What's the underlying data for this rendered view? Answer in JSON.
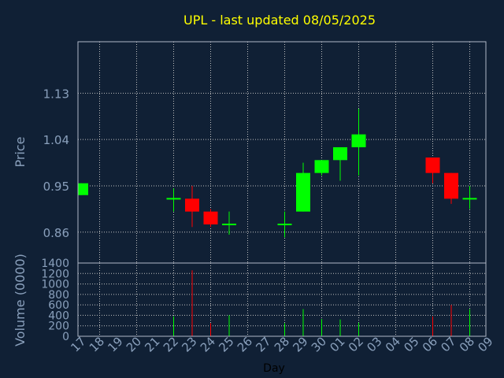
{
  "chart_data": [
    {
      "type": "candlestick",
      "title": "UPL - last updated 08/05/2025",
      "xlabel": "",
      "ylabel": "Price",
      "ylim": [
        0.8,
        1.23
      ],
      "yticks": [
        "0.86",
        "0.95",
        "1.04",
        "1.13"
      ],
      "grid": true,
      "days": [
        "17",
        "18",
        "19",
        "20",
        "21",
        "22",
        "23",
        "24",
        "25",
        "26",
        "27",
        "28",
        "29",
        "30",
        "01",
        "02",
        "03",
        "04",
        "05",
        "06",
        "07",
        "08",
        "09"
      ],
      "candles": [
        {
          "day": "17",
          "open": 0.932,
          "close": 0.955,
          "high": 0.955,
          "low": 0.932
        },
        {
          "day": "22",
          "open": 0.925,
          "close": 0.925,
          "high": 0.945,
          "low": 0.9
        },
        {
          "day": "23",
          "open": 0.925,
          "close": 0.9,
          "high": 0.95,
          "low": 0.87
        },
        {
          "day": "24",
          "open": 0.9,
          "close": 0.875,
          "high": 0.905,
          "low": 0.87
        },
        {
          "day": "25",
          "open": 0.875,
          "close": 0.875,
          "high": 0.9,
          "low": 0.855
        },
        {
          "day": "28",
          "open": 0.875,
          "close": 0.875,
          "high": 0.9,
          "low": 0.85
        },
        {
          "day": "29",
          "open": 0.9,
          "close": 0.975,
          "high": 0.995,
          "low": 0.9
        },
        {
          "day": "30",
          "open": 0.975,
          "close": 1.0,
          "high": 1.0,
          "low": 0.97
        },
        {
          "day": "01",
          "open": 1.0,
          "close": 1.025,
          "high": 1.025,
          "low": 0.96
        },
        {
          "day": "02",
          "open": 1.025,
          "close": 1.05,
          "high": 1.1,
          "low": 0.97
        },
        {
          "day": "06",
          "open": 1.005,
          "close": 0.975,
          "high": 1.005,
          "low": 0.955
        },
        {
          "day": "07",
          "open": 0.975,
          "close": 0.925,
          "high": 0.975,
          "low": 0.915
        },
        {
          "day": "08",
          "open": 0.925,
          "close": 0.925,
          "high": 0.95,
          "low": 0.905
        }
      ],
      "colors": {
        "up": "#00ff00",
        "down": "#ff0000",
        "background": "#102035",
        "axis": "#8aa0bc",
        "title": "#ffff00",
        "grid": "#c0c0c0"
      }
    },
    {
      "type": "bar",
      "title": "",
      "xlabel": "Day",
      "ylabel": "Volume (0000)",
      "ylim": [
        0,
        1400
      ],
      "yticks": [
        "0",
        "200",
        "400",
        "600",
        "800",
        "1000",
        "1200",
        "1400"
      ],
      "grid": true,
      "categories": [
        "17",
        "18",
        "19",
        "20",
        "21",
        "22",
        "23",
        "24",
        "25",
        "26",
        "27",
        "28",
        "29",
        "30",
        "01",
        "02",
        "03",
        "04",
        "05",
        "06",
        "07",
        "08",
        "09"
      ],
      "bars": [
        {
          "day": "22",
          "value": 380,
          "direction": "up"
        },
        {
          "day": "23",
          "value": 1260,
          "direction": "down"
        },
        {
          "day": "24",
          "value": 250,
          "direction": "down"
        },
        {
          "day": "25",
          "value": 400,
          "direction": "up"
        },
        {
          "day": "28",
          "value": 250,
          "direction": "up"
        },
        {
          "day": "29",
          "value": 520,
          "direction": "up"
        },
        {
          "day": "30",
          "value": 330,
          "direction": "up"
        },
        {
          "day": "01",
          "value": 320,
          "direction": "up"
        },
        {
          "day": "02",
          "value": 260,
          "direction": "up"
        },
        {
          "day": "06",
          "value": 380,
          "direction": "down"
        },
        {
          "day": "07",
          "value": 600,
          "direction": "down"
        },
        {
          "day": "08",
          "value": 520,
          "direction": "up"
        }
      ]
    }
  ]
}
